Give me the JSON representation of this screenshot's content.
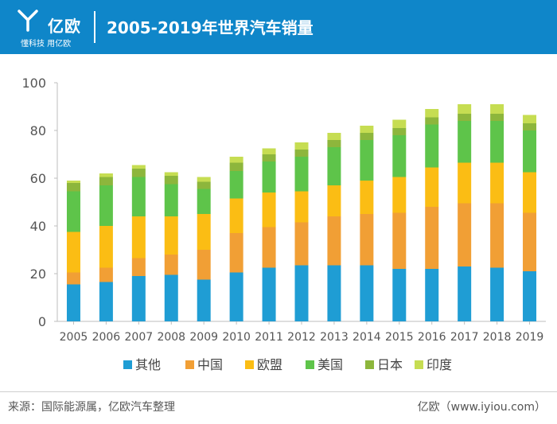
{
  "header": {
    "logo_text": "亿欧",
    "logo_slogan": "懂科技 用亿欧",
    "title": "2005-2019年世界汽车销量"
  },
  "chart_data": {
    "type": "bar",
    "stacked": true,
    "title": "2005-2019年世界汽车销量",
    "xlabel": "",
    "ylabel": "",
    "ylim": [
      0,
      100
    ],
    "yticks": [
      0,
      20,
      40,
      60,
      80,
      100
    ],
    "grid": false,
    "legend_position": "bottom",
    "categories": [
      "2005",
      "2006",
      "2007",
      "2008",
      "2009",
      "2010",
      "2011",
      "2012",
      "2013",
      "2014",
      "2015",
      "2016",
      "2017",
      "2018",
      "2019"
    ],
    "series": [
      {
        "name": "其他",
        "color": "#1f9dd4",
        "values": [
          15.5,
          16.5,
          19,
          19.5,
          17.5,
          20.5,
          22.5,
          23.5,
          23.5,
          23.5,
          22,
          22,
          23,
          22.5,
          21
        ]
      },
      {
        "name": "中国",
        "color": "#f19f35",
        "values": [
          5,
          6,
          7.5,
          8.5,
          12.5,
          16.5,
          17,
          18,
          20.5,
          21.5,
          23.5,
          26,
          26.5,
          27,
          24.5
        ]
      },
      {
        "name": "欧盟",
        "color": "#fbbd14",
        "values": [
          17,
          17.5,
          17.5,
          16,
          15,
          14.5,
          14.5,
          13,
          13,
          14,
          15,
          16.5,
          17,
          17,
          17
        ]
      },
      {
        "name": "美国",
        "color": "#5ec44a",
        "values": [
          17,
          17,
          16.5,
          13.5,
          10.5,
          11.5,
          13,
          14.5,
          16,
          17,
          17.5,
          18,
          17.5,
          17.5,
          17.5
        ]
      },
      {
        "name": "日本",
        "color": "#8db63c",
        "values": [
          3.5,
          3.5,
          3.5,
          3.5,
          3,
          3.5,
          3,
          3,
          3,
          3,
          3,
          3,
          3,
          3,
          3
        ]
      },
      {
        "name": "印度",
        "color": "#c6dd52",
        "values": [
          1,
          1.5,
          1.5,
          1.5,
          2,
          2.5,
          2.5,
          3,
          3,
          3,
          3.5,
          3.5,
          4,
          4,
          3.5
        ]
      }
    ]
  },
  "footer": {
    "source": "来源：国际能源属，亿欧汽车整理",
    "brand": "亿欧（www.iyiou.com）"
  }
}
